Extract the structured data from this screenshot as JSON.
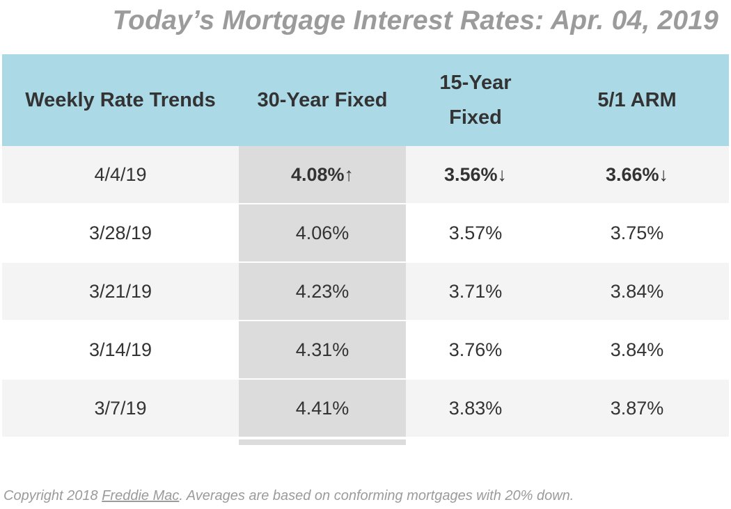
{
  "title": "Today’s Mortgage Interest Rates: Apr. 04, 2019",
  "table": {
    "headers": {
      "week": "Weekly Rate Trends",
      "fixed30": "30-Year Fixed",
      "fixed15_line1": "15-Year",
      "fixed15_line2": "Fixed",
      "arm51": "5/1 ARM"
    },
    "rows": [
      {
        "date": "4/4/19",
        "fixed30": "4.08%",
        "fixed30_arrow": "↑",
        "fixed15": "3.56%",
        "fixed15_arrow": "↓",
        "arm51": "3.66%",
        "arm51_arrow": "↓"
      },
      {
        "date": "3/28/19",
        "fixed30": "4.06%",
        "fixed15": "3.57%",
        "arm51": "3.75%"
      },
      {
        "date": "3/21/19",
        "fixed30": "4.23%",
        "fixed15": "3.71%",
        "arm51": "3.84%"
      },
      {
        "date": "3/14/19",
        "fixed30": "4.31%",
        "fixed15": "3.76%",
        "arm51": "3.84%"
      },
      {
        "date": "3/7/19",
        "fixed30": "4.41%",
        "fixed15": "3.83%",
        "arm51": "3.87%"
      }
    ]
  },
  "footer": {
    "prefix": "Copyright 2018 ",
    "link": "Freddie Mac",
    "suffix": ". Averages are based on conforming mortgages with 20% down."
  },
  "colors": {
    "header_bg": "#acd9e6",
    "highlight_column": "#dcdcdc",
    "row_alt": "#f4f4f4",
    "title_text": "#9b9b9b"
  }
}
